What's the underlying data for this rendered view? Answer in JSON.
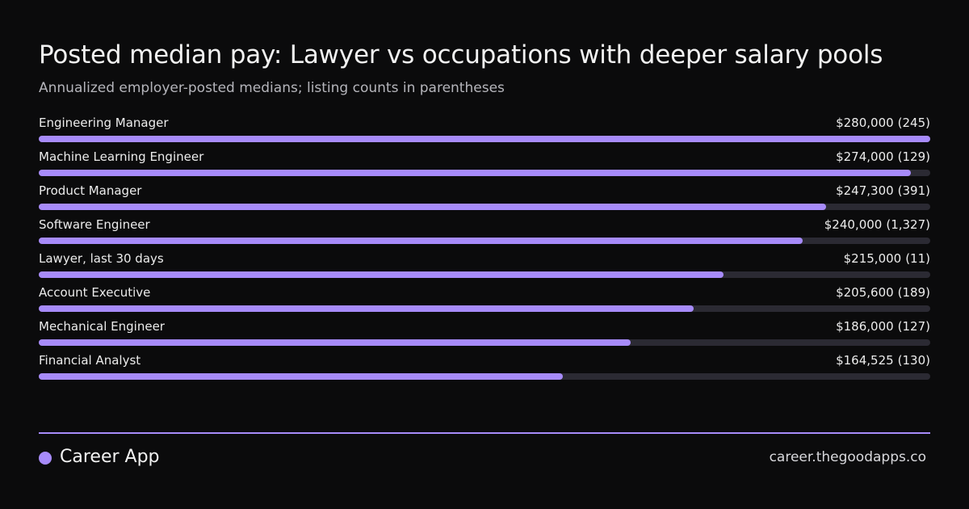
{
  "chart_data": {
    "type": "bar",
    "orientation": "horizontal",
    "title": "Posted median pay: Lawyer vs occupations with deeper salary pools",
    "subtitle": "Annualized employer-posted medians; listing counts in parentheses",
    "categories": [
      "Engineering Manager",
      "Machine Learning Engineer",
      "Product Manager",
      "Software Engineer",
      "Lawyer, last 30 days",
      "Account Executive",
      "Mechanical Engineer",
      "Financial Analyst"
    ],
    "values": [
      280000,
      274000,
      247300,
      240000,
      215000,
      205600,
      186000,
      164525
    ],
    "value_labels": [
      "$280,000",
      "$274,000",
      "$247,300",
      "$240,000",
      "$215,000",
      "$205,600",
      "$186,000",
      "$164,525"
    ],
    "listing_counts": [
      245,
      129,
      391,
      1327,
      11,
      189,
      127,
      130
    ],
    "listing_count_labels": [
      "(245)",
      "(129)",
      "(391)",
      "(1,327)",
      "(11)",
      "(189)",
      "(127)",
      "(130)"
    ],
    "xlim": [
      0,
      280000
    ],
    "color": "#a78bfa",
    "track_color": "#2b2a33"
  },
  "footer": {
    "brand": "Career App",
    "url": "career.thegoodapps.co"
  }
}
